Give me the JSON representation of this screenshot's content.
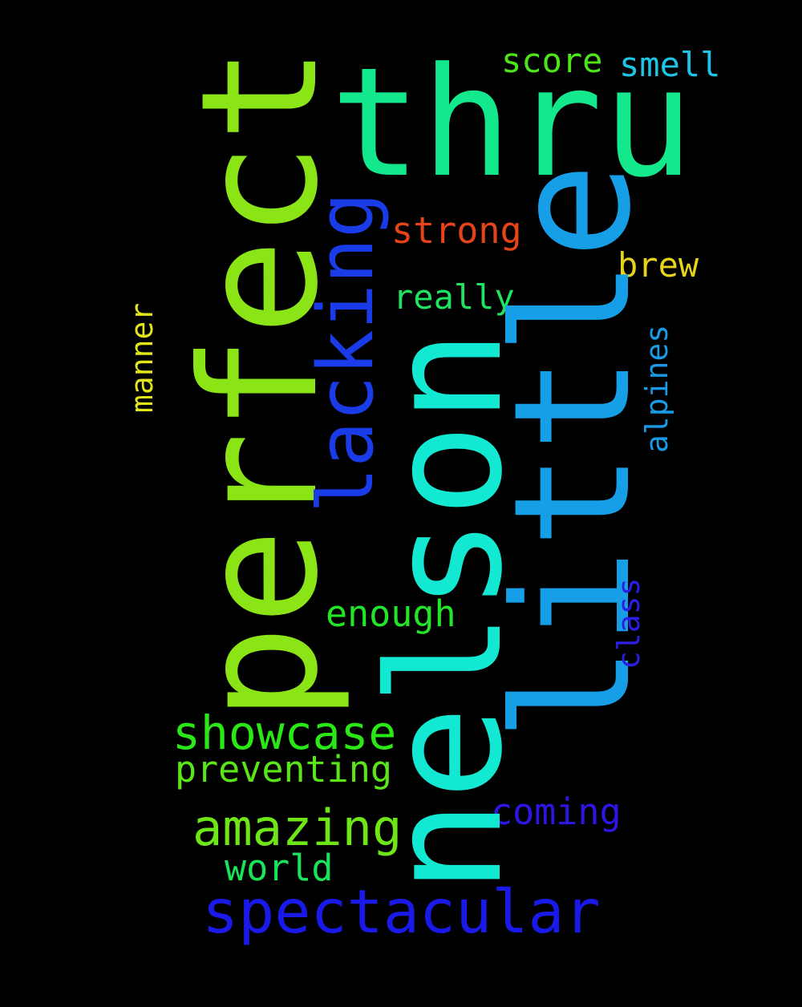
{
  "words": [
    {
      "text": "thru",
      "color": "#13e88d"
    },
    {
      "text": "perfect",
      "color": "#8be415"
    },
    {
      "text": "little",
      "color": "#169fe6"
    },
    {
      "text": "nelson",
      "color": "#12e8d2"
    },
    {
      "text": "lacking",
      "color": "#1a3ce8"
    },
    {
      "text": "spectacular",
      "color": "#1a1ae8"
    },
    {
      "text": "showcase",
      "color": "#2ae816"
    },
    {
      "text": "amazing",
      "color": "#6de516"
    },
    {
      "text": "preventing",
      "color": "#5ae518"
    },
    {
      "text": "world",
      "color": "#18e558"
    },
    {
      "text": "coming",
      "color": "#2d16e5"
    },
    {
      "text": "enough",
      "color": "#22e52a"
    },
    {
      "text": "class",
      "color": "#2a1ee5"
    },
    {
      "text": "alpines",
      "color": "#1a99e5"
    },
    {
      "text": "manner",
      "color": "#e1e51a"
    },
    {
      "text": "score",
      "color": "#4de518"
    },
    {
      "text": "smell",
      "color": "#1ec4e5"
    },
    {
      "text": "strong",
      "color": "#e5431a"
    },
    {
      "text": "brew",
      "color": "#e5d41a"
    },
    {
      "text": "really",
      "color": "#1ee561"
    }
  ]
}
